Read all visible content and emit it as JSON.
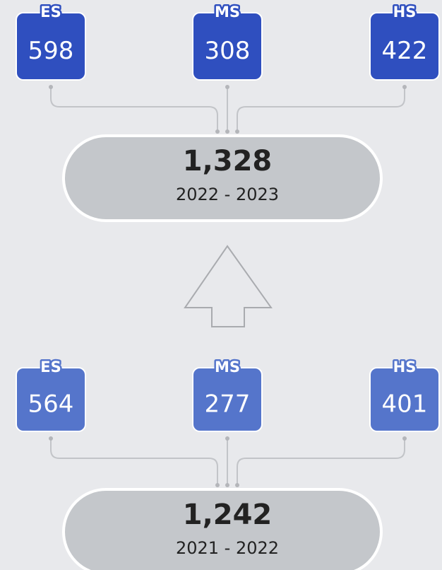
{
  "sections": [
    {
      "total": "1,328",
      "years": "2022 - 2023",
      "schools": [
        {
          "label": "ES",
          "value": "598"
        },
        {
          "label": "MS",
          "value": "308"
        },
        {
          "label": "HS",
          "value": "422"
        }
      ]
    },
    {
      "total": "1,242",
      "years": "2021 - 2022",
      "schools": [
        {
          "label": "ES",
          "value": "564"
        },
        {
          "label": "MS",
          "value": "277"
        },
        {
          "label": "HS",
          "value": "401"
        }
      ]
    }
  ]
}
